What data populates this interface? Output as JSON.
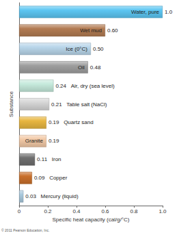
{
  "chart_data": {
    "type": "bar",
    "orientation": "horizontal",
    "xlabel": "Specific heat capacity (cal/g/°C)",
    "ylabel": "Substance",
    "categories": [
      "Water, pure",
      "Wet mud",
      "Ice (0°C)",
      "Oil",
      "Air, dry (sea level)",
      "Table salt (NaCl)",
      "Quartz sand",
      "Granite",
      "Iron",
      "Copper",
      "Mercury (liquid)"
    ],
    "values": [
      1.0,
      0.6,
      0.5,
      0.48,
      0.24,
      0.21,
      0.19,
      0.19,
      0.11,
      0.09,
      0.03
    ],
    "value_labels": [
      "1.0",
      "0.60",
      "0.50",
      "0.48",
      "0.24",
      "0.21",
      "0.19",
      "0.19",
      "0.11",
      "0.09",
      "0.03"
    ],
    "colors": [
      "#5cc6f2",
      "#b27b52",
      "#b9d6ea",
      "#9e9e9e",
      "#c6eadc",
      "#d6d6d6",
      "#e8b640",
      "#f2c9a6",
      "#6f6f6f",
      "#c9702c",
      "#a9c9dd"
    ],
    "xlim": [
      0,
      1
    ],
    "xticks": [
      0,
      0.2,
      0.4,
      0.6,
      0.8,
      {
        "value": 1,
        "label": "1.0"
      }
    ],
    "grid": false,
    "data_labels": true,
    "tick_labels": "x",
    "annotations": [
      "© 2011 Pearson Education, Inc."
    ]
  }
}
